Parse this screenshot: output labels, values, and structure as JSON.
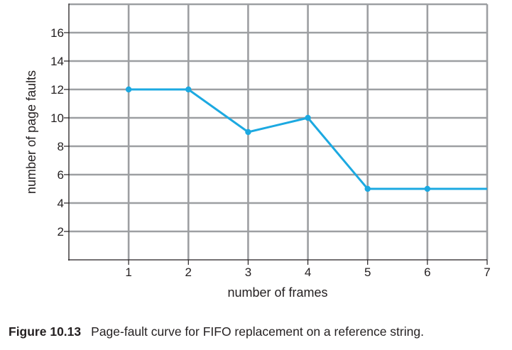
{
  "chart_data": {
    "type": "line",
    "x": [
      1,
      2,
      3,
      4,
      5,
      6,
      7
    ],
    "series": [
      {
        "values": [
          12,
          12,
          9,
          10,
          5,
          5,
          5
        ],
        "color": "#1ca9e1"
      }
    ],
    "xlabel": "number of frames",
    "ylabel": "number of page faults",
    "xticks": [
      "1",
      "2",
      "3",
      "4",
      "5",
      "6",
      "7"
    ],
    "yticks": [
      "2",
      "4",
      "6",
      "8",
      "10",
      "12",
      "14",
      "16"
    ],
    "xlim": [
      0,
      7
    ],
    "ylim": [
      0,
      18
    ],
    "grid": true,
    "colors": {
      "grid": "#9d9fa2",
      "axis": "#231f20",
      "line": "#1ca9e1"
    }
  },
  "caption": {
    "label": "Figure 10.13",
    "text": "Page-fault curve for FIFO replacement on a reference string."
  }
}
